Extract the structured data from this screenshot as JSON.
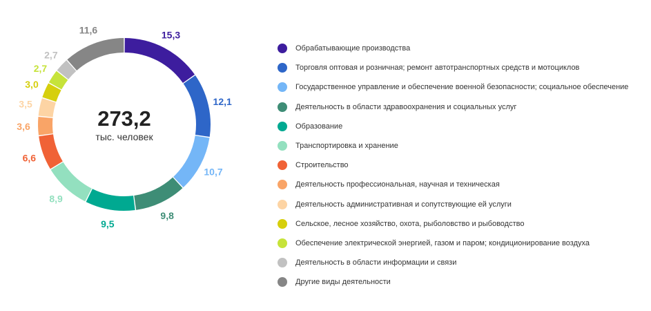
{
  "chart_data": {
    "type": "pie",
    "title": "",
    "center": {
      "total": "273,2",
      "unit": "тыс. человек"
    },
    "categories": [
      "Обрабатывающие производства",
      "Торговля оптовая и розничная; ремонт автотранспортных средств и мотоциклов",
      "Государственное управление и обеспечение военной безопасности; социальное обеспечение",
      "Деятельность в области здравоохранения и социальных услуг",
      "Образование",
      "Транспортировка и хранение",
      "Строительство",
      "Деятельность профессиональная, научная и техническая",
      "Деятельность административная и сопутствующие ей услуги",
      "Сельское, лесное хозяйство, охота, рыболовство и рыбоводство",
      "Обеспечение электрической энергией, газом и паром; кондиционирование воздуха",
      "Деятельность в области информации и связи",
      "Другие виды деятельности"
    ],
    "values": [
      15.3,
      12.1,
      10.7,
      9.8,
      9.5,
      8.9,
      6.6,
      3.6,
      3.5,
      3.0,
      2.7,
      2.7,
      11.6
    ],
    "value_labels": [
      "15,3",
      "12,1",
      "10,7",
      "9,8",
      "9,5",
      "8,9",
      "6,6",
      "3,6",
      "3,5",
      "3,0",
      "2,7",
      "2,7",
      "11,6"
    ],
    "colors": [
      "#3d1d9e",
      "#2e66c8",
      "#74b6f7",
      "#3e8d76",
      "#00a991",
      "#93e0bf",
      "#f06236",
      "#f9a467",
      "#fdd4a4",
      "#d6cf0c",
      "#c6e33a",
      "#c1c1c1",
      "#868686"
    ],
    "legend_position": "right",
    "donut": true
  }
}
